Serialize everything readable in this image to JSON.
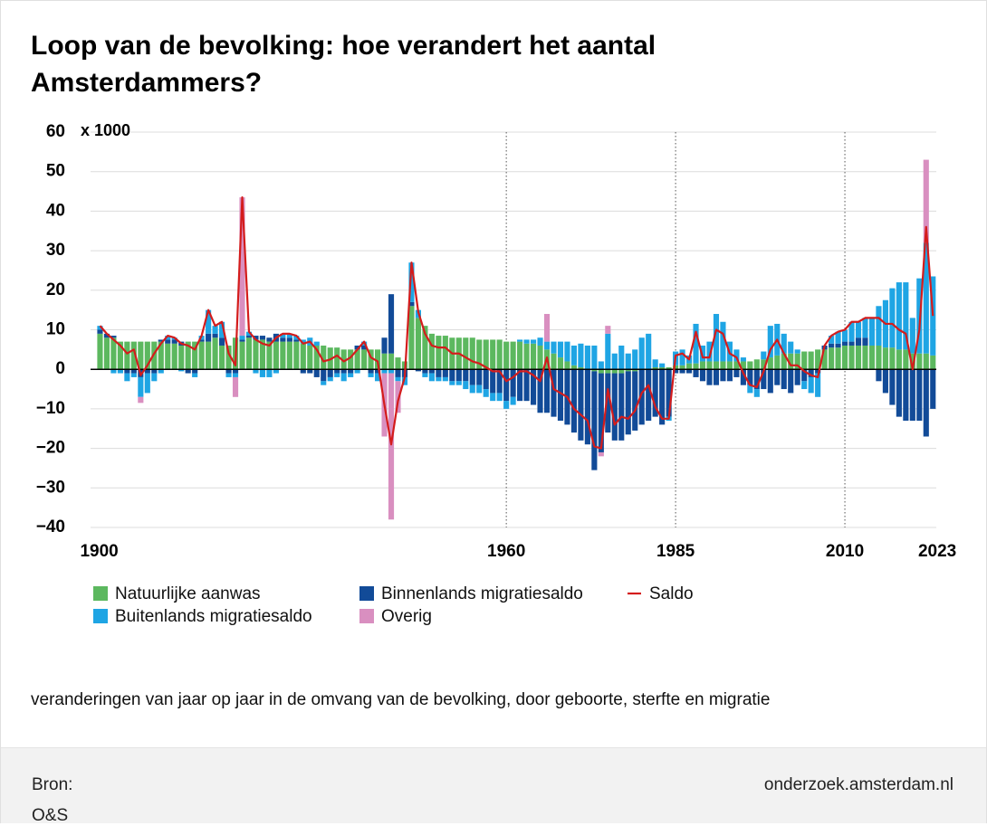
{
  "chart_data": {
    "type": "stacked-bar-line",
    "title": "Loop van de bevolking: hoe verandert het aantal Amsterdammers?",
    "subtitle": "veranderingen van jaar op jaar in de omvang van de bevolking, door geboorte, sterfte en migratie",
    "ylabel": "x 1000",
    "x": [
      1900,
      1901,
      1902,
      1903,
      1904,
      1905,
      1906,
      1907,
      1908,
      1909,
      1910,
      1911,
      1912,
      1913,
      1914,
      1915,
      1916,
      1917,
      1918,
      1919,
      1920,
      1921,
      1922,
      1923,
      1924,
      1925,
      1926,
      1927,
      1928,
      1929,
      1930,
      1931,
      1932,
      1933,
      1934,
      1935,
      1936,
      1937,
      1938,
      1939,
      1940,
      1941,
      1942,
      1943,
      1944,
      1945,
      1946,
      1947,
      1948,
      1949,
      1950,
      1951,
      1952,
      1953,
      1954,
      1955,
      1956,
      1957,
      1958,
      1959,
      1960,
      1961,
      1962,
      1963,
      1964,
      1965,
      1966,
      1967,
      1968,
      1969,
      1970,
      1971,
      1972,
      1973,
      1974,
      1975,
      1976,
      1977,
      1978,
      1979,
      1980,
      1981,
      1982,
      1983,
      1984,
      1985,
      1986,
      1987,
      1988,
      1989,
      1990,
      1991,
      1992,
      1993,
      1994,
      1995,
      1996,
      1997,
      1998,
      1999,
      2000,
      2001,
      2002,
      2003,
      2004,
      2005,
      2006,
      2007,
      2008,
      2009,
      2010,
      2011,
      2012,
      2013,
      2014,
      2015,
      2016,
      2017,
      2018,
      2019,
      2020,
      2021,
      2022,
      2023
    ],
    "xlim": [
      1898.6,
      2023.5
    ],
    "xticks": [
      1900,
      1960,
      1985,
      2010,
      2023
    ],
    "ylim": [
      -40,
      60
    ],
    "yticks": [
      {
        "value": -40,
        "label": "−40"
      },
      {
        "value": -30,
        "label": "−30"
      },
      {
        "value": -20,
        "label": "−20"
      },
      {
        "value": -10,
        "label": "−10"
      },
      0,
      10,
      20,
      30,
      40,
      50,
      60
    ],
    "grid": true,
    "series": [
      {
        "name": "Natuurlijke aanwas",
        "color": "#5cb85f",
        "kind": "bar",
        "values": [
          9,
          8,
          8,
          7,
          7,
          7,
          7,
          7,
          7,
          7,
          6.5,
          6.5,
          6,
          7,
          7,
          7,
          7,
          8,
          6,
          6,
          8,
          7,
          8,
          7.5,
          7.5,
          7,
          7,
          7,
          7,
          7,
          6.5,
          6,
          6,
          6,
          5.5,
          5.5,
          5,
          5,
          5,
          5,
          5,
          5,
          4,
          4,
          3,
          2,
          16,
          13,
          11,
          9,
          8.5,
          8.5,
          8,
          8,
          8,
          8,
          7.5,
          7.5,
          7.5,
          7.5,
          7,
          7,
          7,
          6.5,
          6.5,
          6,
          5,
          4,
          3,
          2,
          1,
          0.5,
          0,
          -0.5,
          -1,
          -1,
          -1,
          -1,
          -0.5,
          -0.5,
          0,
          0,
          0.5,
          0.5,
          0.5,
          1,
          1,
          1.5,
          1.5,
          2,
          2,
          2,
          2,
          2,
          2,
          2,
          2,
          2.5,
          2.5,
          3,
          3.5,
          4,
          4,
          4,
          4.5,
          4.5,
          5,
          5,
          5.5,
          5.5,
          6,
          6,
          6,
          6,
          6,
          6,
          5.5,
          5.5,
          5,
          5,
          4,
          4,
          4,
          3.5
        ]
      },
      {
        "name": "Binnenlands migratiesaldo",
        "color": "#124b98",
        "kind": "bar",
        "values": [
          1,
          1,
          0.5,
          0,
          -1,
          -1,
          -2,
          -1,
          -1,
          0.5,
          1,
          1,
          1,
          -1,
          -1,
          0.5,
          2,
          1,
          2,
          -1,
          -1,
          0.5,
          0.5,
          1,
          1,
          1,
          2,
          1,
          1,
          0.5,
          -1,
          -1,
          -2,
          -3,
          -2,
          -1,
          -1,
          -1,
          1,
          1,
          -1,
          -1,
          4,
          15,
          -2,
          -2,
          1,
          -0.5,
          -1,
          -1,
          -2,
          -2,
          -3,
          -3,
          -3,
          -4,
          -4,
          -5,
          -6,
          -6,
          -8,
          -7,
          -8,
          -8,
          -9,
          -11,
          -11,
          -12,
          -13,
          -14,
          -16,
          -18,
          -19,
          -25,
          -20,
          -15,
          -17,
          -17,
          -16,
          -15,
          -14,
          -13,
          -12,
          -14,
          -12,
          -1,
          -1,
          -1,
          -2,
          -3,
          -4,
          -4,
          -3,
          -3,
          -2,
          -4,
          -4,
          -5,
          -5,
          -6,
          -4,
          -5,
          -6,
          -4,
          -3,
          -2,
          -1,
          1,
          1,
          1,
          1,
          1,
          2,
          2,
          0,
          -3,
          -6,
          -9,
          -12,
          -13,
          -13,
          -13,
          -17,
          -10
        ]
      },
      {
        "name": "Buitenlands migratiesaldo",
        "color": "#1fa5e4",
        "kind": "bar",
        "values": [
          1,
          0,
          -1,
          -1,
          -2,
          -1,
          -5,
          -5,
          -2,
          -1,
          1,
          0.5,
          -0.5,
          0,
          -1,
          1,
          6,
          2,
          4,
          -1,
          -1,
          1,
          1,
          -1,
          -2,
          -2,
          -1,
          1,
          1,
          1,
          1,
          2,
          1,
          -1,
          -1,
          -1,
          -2,
          -1,
          -1,
          1,
          -1,
          -2,
          -1,
          -1,
          -1,
          -2,
          10,
          2,
          -1,
          -2,
          -1,
          -1,
          -1,
          -1,
          -2,
          -2,
          -2,
          -2,
          -2,
          -2,
          -2,
          -2,
          0.5,
          1,
          1,
          2,
          2,
          3,
          4,
          5,
          5,
          6,
          6,
          6,
          2,
          9,
          4,
          6,
          4,
          5,
          8,
          9,
          2,
          1,
          -1,
          3.5,
          4,
          2,
          10,
          4,
          5,
          12,
          10,
          5,
          3,
          1,
          -2,
          -2,
          2,
          8,
          8,
          5,
          3,
          1,
          -2,
          -4,
          -6,
          0,
          2,
          3,
          3,
          5,
          4,
          5,
          7,
          10,
          12,
          15,
          17,
          17,
          9,
          19,
          28,
          20
        ]
      },
      {
        "name": "Overig",
        "color": "#d98fc0",
        "kind": "bar",
        "values": [
          0,
          0,
          0,
          0,
          0,
          0,
          -1.5,
          0,
          0,
          0,
          0,
          0,
          0,
          0,
          0,
          0,
          0,
          0,
          0,
          0,
          -5,
          35,
          0,
          0,
          0,
          0,
          0,
          0,
          0,
          0,
          0,
          0,
          0,
          0,
          0,
          0,
          0,
          0,
          0,
          0,
          0,
          0,
          -16,
          -37,
          -8,
          0,
          0,
          0,
          0,
          0,
          0,
          0,
          0,
          0,
          0,
          0,
          0,
          0,
          0,
          0,
          0,
          0,
          0,
          0,
          0,
          0,
          7,
          0,
          0,
          0,
          0,
          0,
          0,
          0,
          -1,
          2,
          0,
          0,
          0,
          0,
          0,
          0,
          0,
          0,
          0,
          0,
          0,
          0,
          0,
          0,
          0,
          0,
          0,
          0,
          0,
          0,
          0,
          0,
          0,
          0,
          0,
          0,
          0,
          0,
          0,
          0,
          0,
          0,
          0,
          0,
          0,
          0,
          0,
          0,
          0,
          0,
          0,
          0,
          0,
          0,
          0,
          0,
          21,
          0
        ]
      },
      {
        "name": "Saldo",
        "color": "#d41c1c",
        "kind": "line",
        "values": [
          11,
          9,
          7.5,
          6,
          4,
          5,
          -1.5,
          1,
          4,
          6.5,
          8.5,
          8,
          6.5,
          6,
          5,
          8.5,
          15,
          11,
          12,
          4,
          1,
          43.5,
          9.5,
          7.5,
          6.5,
          6,
          8,
          9,
          9,
          8.5,
          6.5,
          7,
          5,
          2,
          2.5,
          3.5,
          2,
          3,
          5,
          7,
          3,
          2,
          -9,
          -19,
          -8,
          -2,
          27,
          14.5,
          9,
          6,
          5.5,
          5.5,
          4,
          4,
          3,
          2,
          1.5,
          0.5,
          -0.5,
          -0.5,
          -3,
          -2,
          -0.5,
          -0.5,
          -1.5,
          -3,
          3,
          -5,
          -6,
          -7,
          -10,
          -11.5,
          -13,
          -19.5,
          -20,
          -5,
          -14,
          -12,
          -12.5,
          -10.5,
          -6,
          -4,
          -9.5,
          -12.5,
          -12.5,
          3.5,
          4,
          2.5,
          9.5,
          3,
          3,
          10,
          9,
          4,
          3,
          -1,
          -4,
          -4.5,
          -0.5,
          5,
          7.5,
          4,
          1,
          1,
          -0.5,
          -1.5,
          -2,
          6,
          8.5,
          9.5,
          10,
          12,
          12,
          13,
          13,
          13,
          11.5,
          11.5,
          10,
          9,
          0,
          10,
          36,
          13.5
        ]
      }
    ]
  },
  "footer": {
    "source_label": "Bron:",
    "source": "O&S",
    "link": "onderzoek.amsterdam.nl"
  }
}
